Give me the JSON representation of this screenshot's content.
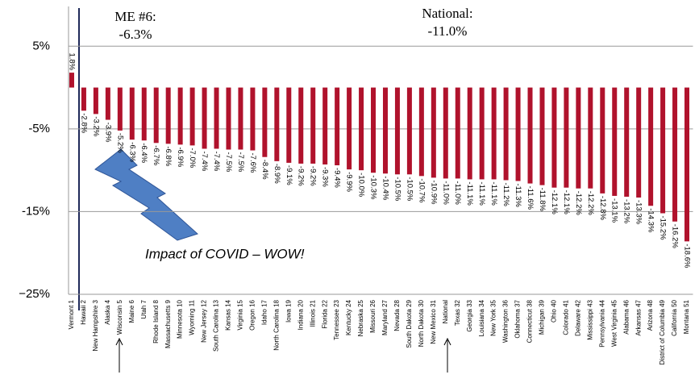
{
  "chart_data": {
    "type": "bar",
    "categories": [
      "Vermont 1",
      "Hawaii 2",
      "New Hampshire 3",
      "Alaska 4",
      "Wisconsin 5",
      "Maine 6",
      "Utah 7",
      "Rhode Island 8",
      "Massachusetts 9",
      "Minnesota 10",
      "Wyoming 11",
      "New Jersey 12",
      "South Carolina 13",
      "Kansas 14",
      "Virginia 15",
      "Oregon 16",
      "Idaho 17",
      "North Carolina 18",
      "Iowa 19",
      "Indiana 20",
      "Illinois 21",
      "Florida 22",
      "Tennessee 23",
      "Kentucky 24",
      "Nebraska 25",
      "Missouri 26",
      "Maryland 27",
      "Nevada 28",
      "South Dakota 29",
      "North Dakota 30",
      "New Mexico 31",
      "National",
      "Texas 32",
      "Georgia 33",
      "Louisiana 34",
      "New York 35",
      "Washington 36",
      "Oklahoma 37",
      "Connecticut 38",
      "Michigan 39",
      "Ohio 40",
      "Colorado 41",
      "Delaware 42",
      "Mississippi 43",
      "Pennsylvania 44",
      "West Virginia 45",
      "Alabama 46",
      "Arkansas 47",
      "Arizona 48",
      "District of Columbia 49",
      "California 50",
      "Montana 51"
    ],
    "values": [
      1.8,
      -2.8,
      -3.2,
      -3.9,
      -5.2,
      -6.3,
      -6.4,
      -6.7,
      -6.8,
      -6.9,
      -7.0,
      -7.4,
      -7.4,
      -7.5,
      -7.5,
      -7.6,
      -8.4,
      -8.9,
      -9.1,
      -9.2,
      -9.2,
      -9.3,
      -9.4,
      -9.9,
      -10.0,
      -10.3,
      -10.4,
      -10.5,
      -10.5,
      -10.7,
      -10.9,
      -11.0,
      -11.0,
      -11.1,
      -11.1,
      -11.1,
      -11.2,
      -11.3,
      -11.6,
      -11.8,
      -12.1,
      -12.1,
      -12.2,
      -12.2,
      -12.8,
      -13.1,
      -13.2,
      -13.3,
      -14.3,
      -15.2,
      -16.2,
      -18.6
    ],
    "value_labels": [
      "1.8%",
      "-2.8%",
      "-3.2%",
      "-3.9%",
      "-5.2%",
      "-6.3%",
      "-6.4%",
      "-6.7%",
      "-6.8%",
      "-6.9%",
      "-7.0%",
      "-7.4%",
      "-7.4%",
      "-7.5%",
      "-7.5%",
      "-7.6%",
      "-8.4%",
      "-8.9%",
      "-9.1%",
      "-9.2%",
      "-9.2%",
      "-9.3%",
      "-9.4%",
      "-9.9%",
      "-10.0%",
      "-10.3%",
      "-10.4%",
      "-10.5%",
      "-10.5%",
      "-10.7%",
      "-10.9%",
      "-11.0%",
      "-11.0%",
      "-11.1%",
      "-11.1%",
      "-11.1%",
      "-11.2%",
      "-11.3%",
      "-11.6%",
      "-11.8%",
      "-12.1%",
      "-12.1%",
      "-12.2%",
      "-12.2%",
      "-12.8%",
      "-13.1%",
      "-13.2%",
      "-13.3%",
      "-14.3%",
      "-15.2%",
      "-16.2%",
      "-18.6%"
    ],
    "color": "#b0122c",
    "ylim": [
      -25,
      10
    ],
    "yticks": [
      {
        "value": 5,
        "label": "5%"
      },
      {
        "value": -5,
        "label": "-5%"
      },
      {
        "value": -15,
        "label": "-15%"
      },
      {
        "value": -25,
        "label": "−25%"
      }
    ],
    "grid": true,
    "annotations": [
      "ME #6:",
      "-6.3%",
      "National:",
      "-11.0%",
      "Impact of COVID – WOW!"
    ]
  }
}
